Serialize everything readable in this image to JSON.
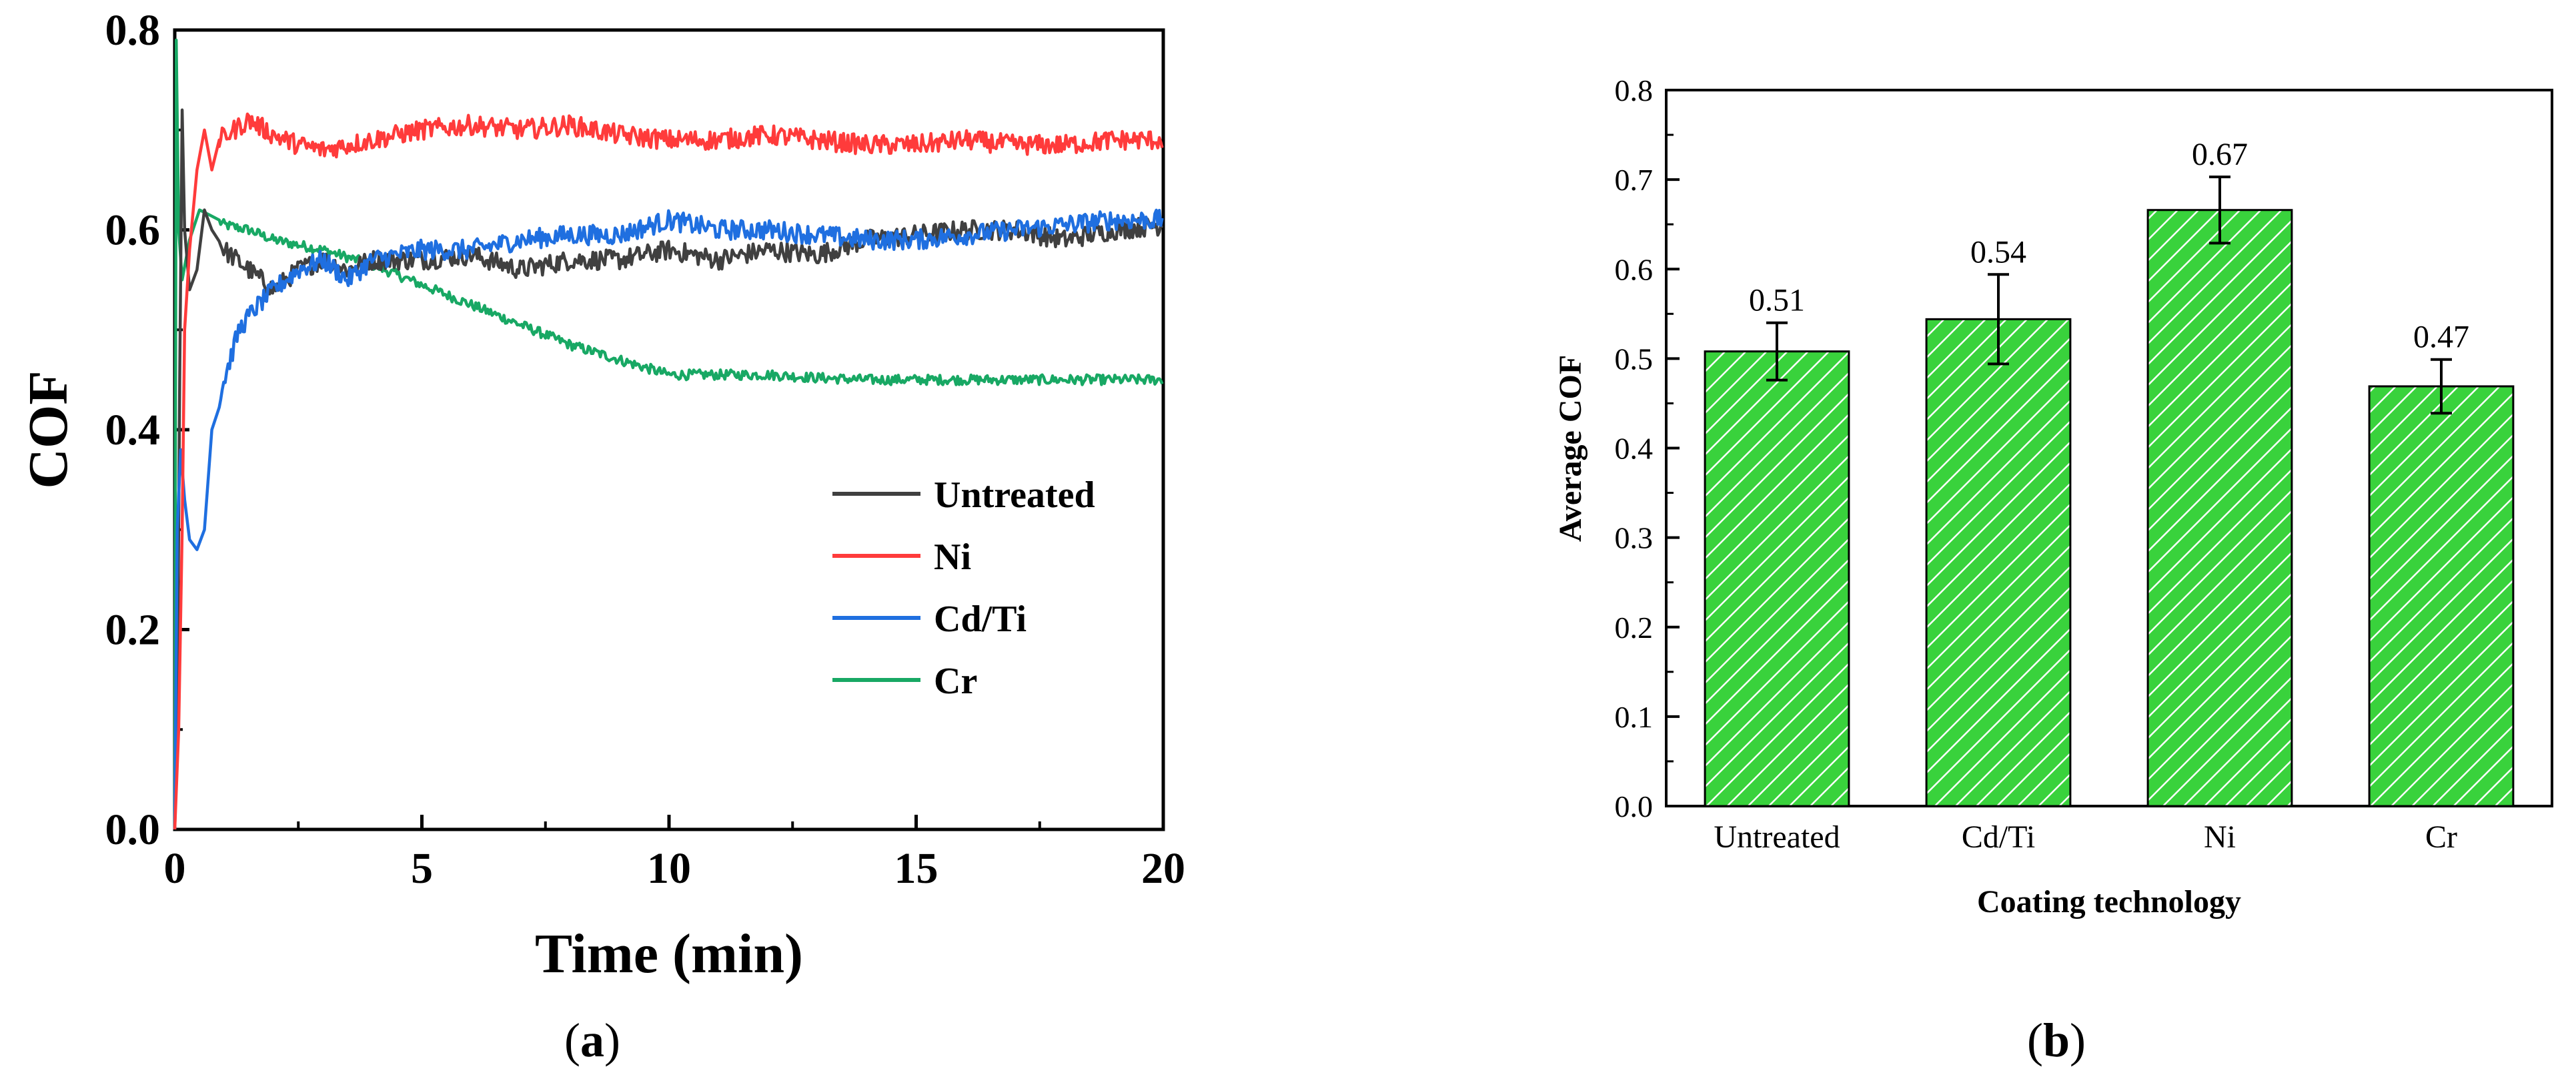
{
  "panels": {
    "a": {
      "caption_open": "(",
      "caption_letter": "a",
      "caption_close": ")"
    },
    "b": {
      "caption_open": "(",
      "caption_letter": "b",
      "caption_close": ")"
    }
  },
  "chart_data": [
    {
      "type": "line",
      "xlabel": "Time (min)",
      "ylabel": "COF",
      "xlim": [
        0,
        20
      ],
      "ylim": [
        0.0,
        0.8
      ],
      "xticks": [
        "0",
        "5",
        "10",
        "15",
        "20"
      ],
      "yticks": [
        "0.0",
        "0.2",
        "0.4",
        "0.6",
        "0.8"
      ],
      "legend_position": "bottom-right",
      "series": [
        {
          "name": "Untreated",
          "color": "#404040",
          "points": [
            [
              0.0,
              0.0
            ],
            [
              0.05,
              0.1
            ],
            [
              0.1,
              0.45
            ],
            [
              0.15,
              0.72
            ],
            [
              0.2,
              0.6
            ],
            [
              0.3,
              0.54
            ],
            [
              0.45,
              0.56
            ],
            [
              0.6,
              0.62
            ],
            [
              0.75,
              0.6
            ],
            [
              1.0,
              0.58
            ],
            [
              1.5,
              0.56
            ],
            [
              2.0,
              0.54
            ],
            [
              2.5,
              0.56
            ],
            [
              3.0,
              0.57
            ],
            [
              3.5,
              0.56
            ],
            [
              4.0,
              0.57
            ],
            [
              5.0,
              0.57
            ],
            [
              6.0,
              0.575
            ],
            [
              7.0,
              0.56
            ],
            [
              8.0,
              0.57
            ],
            [
              9.0,
              0.57
            ],
            [
              10.0,
              0.58
            ],
            [
              11.0,
              0.57
            ],
            [
              12.0,
              0.58
            ],
            [
              13.0,
              0.575
            ],
            [
              14.0,
              0.59
            ],
            [
              15.0,
              0.595
            ],
            [
              16.0,
              0.6
            ],
            [
              17.0,
              0.6
            ],
            [
              18.0,
              0.59
            ],
            [
              19.0,
              0.6
            ],
            [
              20.0,
              0.605
            ]
          ]
        },
        {
          "name": "Ni",
          "color": "#ff3b3b",
          "points": [
            [
              0.0,
              0.0
            ],
            [
              0.08,
              0.1
            ],
            [
              0.15,
              0.3
            ],
            [
              0.2,
              0.5
            ],
            [
              0.3,
              0.58
            ],
            [
              0.45,
              0.66
            ],
            [
              0.6,
              0.7
            ],
            [
              0.75,
              0.66
            ],
            [
              0.9,
              0.69
            ],
            [
              1.2,
              0.7
            ],
            [
              1.5,
              0.71
            ],
            [
              2.0,
              0.695
            ],
            [
              2.5,
              0.685
            ],
            [
              3.0,
              0.68
            ],
            [
              4.0,
              0.69
            ],
            [
              5.0,
              0.7
            ],
            [
              6.0,
              0.705
            ],
            [
              7.0,
              0.7
            ],
            [
              8.0,
              0.705
            ],
            [
              9.0,
              0.695
            ],
            [
              10.0,
              0.69
            ],
            [
              11.0,
              0.69
            ],
            [
              12.0,
              0.695
            ],
            [
              13.0,
              0.69
            ],
            [
              14.0,
              0.685
            ],
            [
              15.0,
              0.685
            ],
            [
              16.0,
              0.69
            ],
            [
              17.0,
              0.685
            ],
            [
              18.0,
              0.685
            ],
            [
              19.0,
              0.69
            ],
            [
              20.0,
              0.69
            ]
          ]
        },
        {
          "name": "Cd/Ti",
          "color": "#1f6fe0",
          "points": [
            [
              0.0,
              0.0
            ],
            [
              0.05,
              0.3
            ],
            [
              0.12,
              0.38
            ],
            [
              0.2,
              0.33
            ],
            [
              0.3,
              0.29
            ],
            [
              0.45,
              0.28
            ],
            [
              0.6,
              0.3
            ],
            [
              0.75,
              0.4
            ],
            [
              1.0,
              0.45
            ],
            [
              1.3,
              0.5
            ],
            [
              1.6,
              0.52
            ],
            [
              2.0,
              0.54
            ],
            [
              2.5,
              0.56
            ],
            [
              3.0,
              0.57
            ],
            [
              3.5,
              0.55
            ],
            [
              4.0,
              0.57
            ],
            [
              5.0,
              0.58
            ],
            [
              6.0,
              0.58
            ],
            [
              7.0,
              0.59
            ],
            [
              8.0,
              0.595
            ],
            [
              9.0,
              0.595
            ],
            [
              10.0,
              0.61
            ],
            [
              11.0,
              0.6
            ],
            [
              12.0,
              0.6
            ],
            [
              13.0,
              0.595
            ],
            [
              14.0,
              0.59
            ],
            [
              15.0,
              0.59
            ],
            [
              16.0,
              0.595
            ],
            [
              17.0,
              0.6
            ],
            [
              18.0,
              0.605
            ],
            [
              19.0,
              0.61
            ],
            [
              20.0,
              0.61
            ]
          ]
        },
        {
          "name": "Cr",
          "color": "#18a864",
          "points": [
            [
              0.0,
              0.0
            ],
            [
              0.03,
              0.79
            ],
            [
              0.08,
              0.6
            ],
            [
              0.15,
              0.55
            ],
            [
              0.3,
              0.59
            ],
            [
              0.5,
              0.62
            ],
            [
              0.7,
              0.615
            ],
            [
              1.0,
              0.605
            ],
            [
              1.5,
              0.6
            ],
            [
              2.0,
              0.59
            ],
            [
              2.5,
              0.585
            ],
            [
              3.0,
              0.58
            ],
            [
              4.0,
              0.565
            ],
            [
              5.0,
              0.545
            ],
            [
              6.0,
              0.525
            ],
            [
              7.0,
              0.505
            ],
            [
              8.0,
              0.485
            ],
            [
              9.0,
              0.47
            ],
            [
              10.0,
              0.455
            ],
            [
              11.0,
              0.455
            ],
            [
              12.0,
              0.455
            ],
            [
              13.0,
              0.452
            ],
            [
              14.0,
              0.45
            ],
            [
              15.0,
              0.45
            ],
            [
              16.0,
              0.45
            ],
            [
              17.0,
              0.45
            ],
            [
              18.0,
              0.45
            ],
            [
              19.0,
              0.45
            ],
            [
              20.0,
              0.45
            ]
          ]
        }
      ]
    },
    {
      "type": "bar",
      "xlabel": "Coating technology",
      "ylabel": "Average COF",
      "ylim": [
        0.0,
        0.8
      ],
      "yticks": [
        "0.0",
        "0.1",
        "0.2",
        "0.3",
        "0.4",
        "0.5",
        "0.6",
        "0.7",
        "0.8"
      ],
      "bar_color": "#39d23c",
      "hatch_color": "#ffffff",
      "categories": [
        "Untreated",
        "Cd/Ti",
        "Ni",
        "Cr"
      ],
      "values": [
        0.508,
        0.544,
        0.666,
        0.469
      ],
      "errors": [
        0.032,
        0.05,
        0.037,
        0.03
      ],
      "data_labels": [
        "0.51",
        "0.54",
        "0.67",
        "0.47"
      ]
    }
  ]
}
